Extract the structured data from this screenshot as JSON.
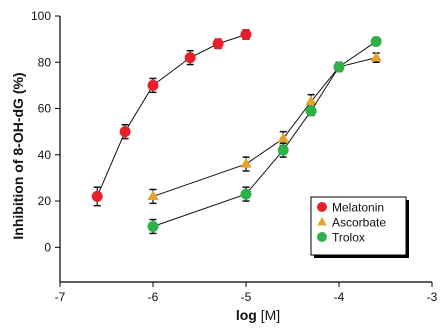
{
  "chart_data": {
    "type": "scatter",
    "xlabel_bold": "log",
    "xlabel_rest": " [M]",
    "ylabel": "Inhibition of 8-OH-dG (%)",
    "xlim": [
      -7,
      -3
    ],
    "ylim": [
      -15,
      100
    ],
    "xticks": [
      -7,
      -6,
      -5,
      -4,
      -3
    ],
    "yticks": [
      0,
      20,
      40,
      60,
      80,
      100
    ],
    "grid": false,
    "legend_position": "lower-right",
    "series": [
      {
        "name": "Melatonin",
        "marker": "circle",
        "color": "#e8202a",
        "x": [
          -6.6,
          -6.3,
          -6.0,
          -5.6,
          -5.3,
          -5.0
        ],
        "y": [
          22,
          50,
          70,
          82,
          88,
          92
        ],
        "err": [
          4,
          3,
          3,
          3,
          2,
          2
        ]
      },
      {
        "name": "Ascorbate",
        "marker": "triangle",
        "color": "#e5a22c",
        "x": [
          -6.0,
          -5.0,
          -4.6,
          -4.3,
          -4.0,
          -3.6
        ],
        "y": [
          22,
          36,
          47,
          63,
          78,
          82
        ],
        "err": [
          3,
          3,
          3,
          3,
          2,
          2
        ]
      },
      {
        "name": "Trolox",
        "marker": "circle",
        "color": "#2fb14a",
        "x": [
          -6.0,
          -5.0,
          -4.6,
          -4.3,
          -4.0,
          -3.6
        ],
        "y": [
          9,
          23,
          42,
          59,
          78,
          89
        ],
        "err": [
          3,
          3,
          3,
          2,
          1,
          1
        ]
      }
    ]
  }
}
